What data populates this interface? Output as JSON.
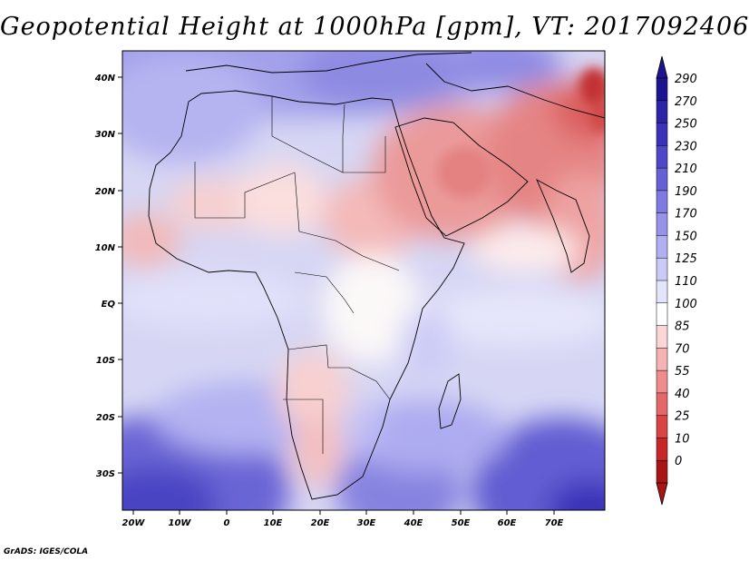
{
  "title": "Geopotential Height at 1000hPa [gpm], VT: 2017092406",
  "credit": "GrADS: IGES/COLA",
  "x_ticks": [
    "20W",
    "10W",
    "0",
    "10E",
    "20E",
    "30E",
    "40E",
    "50E",
    "60E",
    "70E"
  ],
  "y_ticks": [
    "40N",
    "30N",
    "20N",
    "10N",
    "EQ",
    "10S",
    "20S",
    "30S"
  ],
  "colorbar": {
    "labels": [
      "290",
      "270",
      "250",
      "230",
      "210",
      "190",
      "170",
      "150",
      "125",
      "110",
      "100",
      "85",
      "70",
      "55",
      "40",
      "25",
      "10",
      "0"
    ],
    "colors": [
      "#1c1490",
      "#2a23a5",
      "#3a33b8",
      "#4e48c8",
      "#6660d6",
      "#7f7ae0",
      "#9793ea",
      "#b1aff2",
      "#cbcaf6",
      "#e4e4fb",
      "#ffffff",
      "#fbd6d6",
      "#f5b3b3",
      "#ee8c8c",
      "#e56868",
      "#d94444",
      "#c62828",
      "#a81515"
    ]
  },
  "chart_data": {
    "type": "heatmap",
    "title": "Geopotential Height at 1000hPa [gpm], VT: 2017092406",
    "variable": "Geopotential Height",
    "level": "1000hPa",
    "units": "gpm",
    "valid_time": "2017092406",
    "lon_range": [
      -23,
      80
    ],
    "lat_range": [
      -37,
      46
    ],
    "contour_levels": [
      0,
      10,
      25,
      40,
      55,
      70,
      85,
      100,
      110,
      125,
      150,
      170,
      190,
      210,
      230,
      250,
      270,
      290
    ]
  }
}
